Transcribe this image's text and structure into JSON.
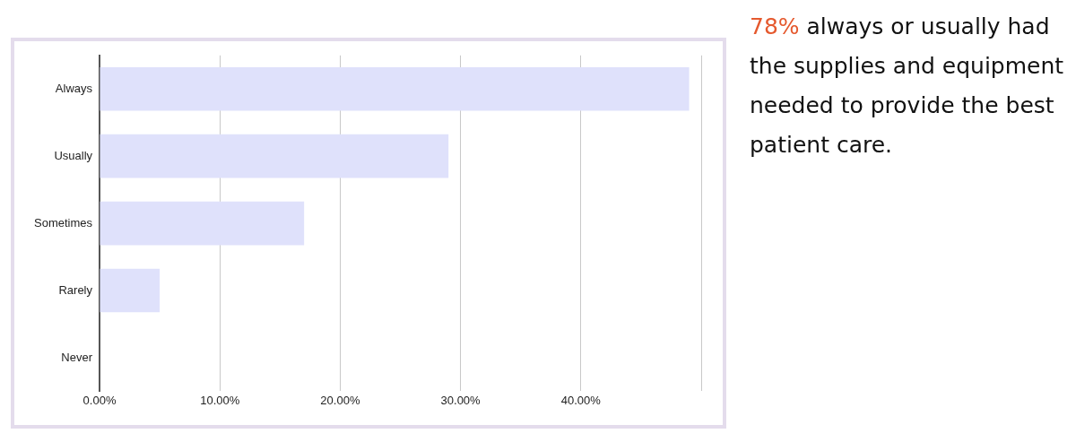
{
  "chart_data": {
    "type": "bar",
    "orientation": "horizontal",
    "categories": [
      "Always",
      "Usually",
      "Sometimes",
      "Rarely",
      "Never"
    ],
    "values": [
      49,
      29,
      17,
      5,
      0
    ],
    "color": "#dfe1fb",
    "xlim": [
      0,
      50
    ],
    "xticks": [
      {
        "value": 0,
        "label": "0.00%"
      },
      {
        "value": 10,
        "label": "10.00%"
      },
      {
        "value": 20,
        "label": "20.00%"
      },
      {
        "value": 30,
        "label": "30.00%"
      },
      {
        "value": 40,
        "label": "40.00%"
      },
      {
        "value": 50,
        "label": null
      }
    ],
    "grid": "x",
    "legend": false,
    "annotations": [
      "78% always or usually had the supplies and equipment needed to provide the best patient care."
    ]
  }
}
